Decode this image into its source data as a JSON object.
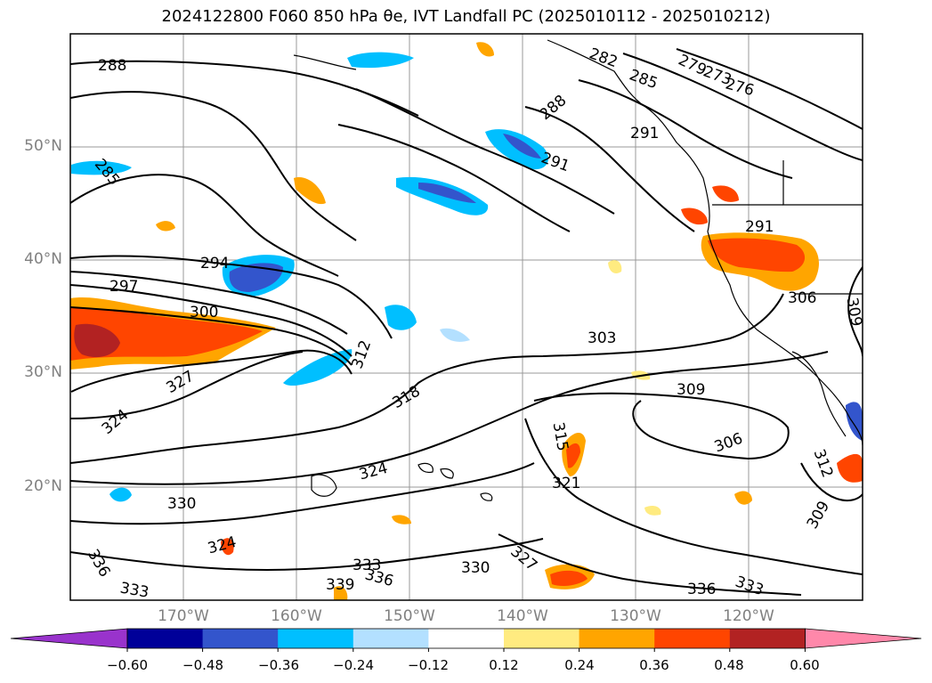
{
  "title": "2024122800 F060 850 hPa θe, IVT Landfall PC (2025010112 - 2025010212)",
  "lat_labels": [
    "50°N",
    "40°N",
    "30°N",
    "20°N"
  ],
  "lon_labels": [
    "170°W",
    "160°W",
    "150°W",
    "140°W",
    "130°W",
    "120°W"
  ],
  "contour_labels": [
    "288",
    "282",
    "285",
    "279",
    "273",
    "276",
    "288",
    "291",
    "291",
    "285",
    "294",
    "291",
    "297",
    "300",
    "306",
    "309",
    "303",
    "312",
    "327",
    "318",
    "309",
    "324",
    "315",
    "306",
    "312",
    "321",
    "324",
    "330",
    "309",
    "324",
    "333",
    "330",
    "327",
    "336",
    "336",
    "339",
    "336",
    "333",
    "333"
  ],
  "colorbar": {
    "ticks": [
      "−0.60",
      "−0.48",
      "−0.36",
      "−0.24",
      "−0.12",
      "0.12",
      "0.24",
      "0.36",
      "0.48",
      "0.60"
    ],
    "colors": [
      "#9933cc",
      "#000099",
      "#3355cc",
      "#00bfff",
      "#b3e0ff",
      "#ffffff",
      "#ffeb80",
      "#ffa500",
      "#ff4500",
      "#b22222",
      "#ff88aa"
    ]
  }
}
